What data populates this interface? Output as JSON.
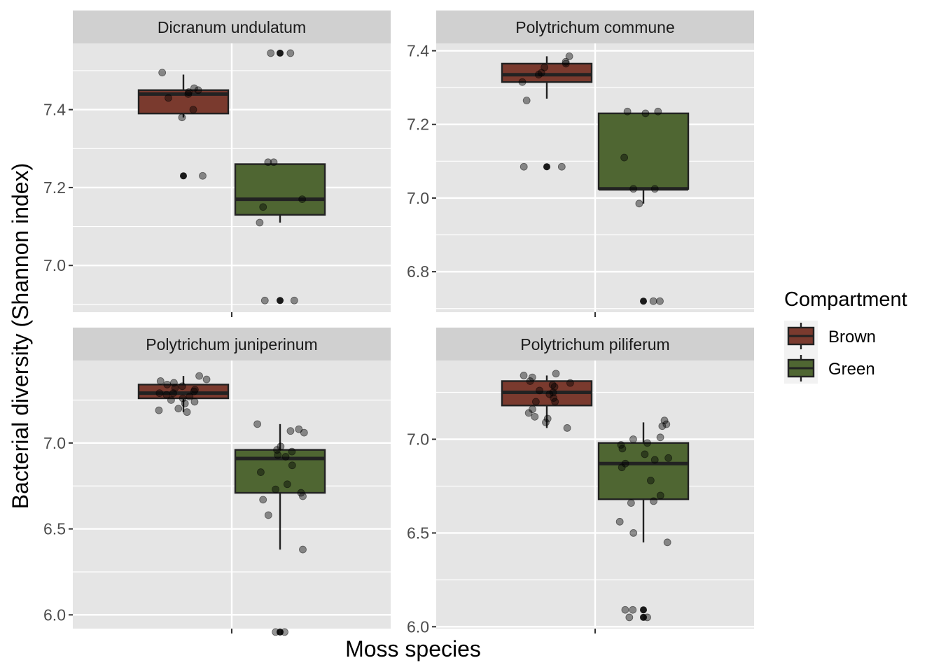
{
  "figure": {
    "x_title": "Moss species",
    "y_title": "Bacterial diversity (Shannon index)"
  },
  "legend": {
    "title": "Compartment",
    "items": [
      {
        "label": "Brown",
        "color": "#7a3a2e"
      },
      {
        "label": "Green",
        "color": "#4f6632"
      }
    ]
  },
  "colors": {
    "panel_bg": "#e5e5e5",
    "strip_bg": "#d0d0d0",
    "grid": "#ffffff",
    "brown_fill": "#7a3a2e",
    "green_fill": "#4f6632",
    "box_line": "#222222"
  },
  "chart_data": [
    {
      "type": "boxplot",
      "title": "Dicranum undulatum",
      "ylim": [
        6.88,
        7.57
      ],
      "yticks": [
        7.0,
        7.2,
        7.4
      ],
      "ytick_labels": [
        "7.0",
        "7.2",
        "7.4"
      ],
      "groups": [
        {
          "name": "Brown",
          "stats": {
            "min": 7.38,
            "q1": 7.39,
            "median": 7.44,
            "q3": 7.45,
            "max": 7.49
          },
          "outliers": [
            7.23
          ],
          "points": [
            7.495,
            7.45,
            7.455,
            7.44,
            7.445,
            7.43,
            7.4,
            7.38,
            7.23
          ]
        },
        {
          "name": "Green",
          "stats": {
            "min": 7.11,
            "q1": 7.13,
            "median": 7.17,
            "q3": 7.26,
            "max": 7.26
          },
          "outliers": [
            7.545,
            6.91
          ],
          "points": [
            7.545,
            7.545,
            7.265,
            7.265,
            7.17,
            7.15,
            7.11,
            6.91,
            6.91
          ]
        }
      ]
    },
    {
      "type": "boxplot",
      "title": "Polytrichum commune",
      "ylim": [
        6.69,
        7.42
      ],
      "yticks": [
        6.8,
        7.0,
        7.2,
        7.4
      ],
      "ytick_labels": [
        "6.8",
        "7.0",
        "7.2",
        "7.4"
      ],
      "groups": [
        {
          "name": "Brown",
          "stats": {
            "min": 7.27,
            "q1": 7.315,
            "median": 7.335,
            "q3": 7.365,
            "max": 7.385
          },
          "outliers": [
            7.085
          ],
          "points": [
            7.385,
            7.37,
            7.365,
            7.355,
            7.34,
            7.335,
            7.315,
            7.265,
            7.085,
            7.085
          ]
        },
        {
          "name": "Green",
          "stats": {
            "min": 6.985,
            "q1": 7.025,
            "median": 7.025,
            "q3": 7.23,
            "max": 7.23
          },
          "outliers": [
            6.72
          ],
          "points": [
            7.235,
            7.235,
            7.23,
            7.11,
            7.025,
            7.025,
            6.985,
            6.72,
            6.72
          ]
        }
      ]
    },
    {
      "type": "boxplot",
      "title": "Polytrichum juniperinum",
      "ylim": [
        5.92,
        7.48
      ],
      "yticks": [
        6.0,
        6.5,
        7.0
      ],
      "ytick_labels": [
        "6.0",
        "6.5",
        "7.0"
      ],
      "groups": [
        {
          "name": "Brown",
          "stats": {
            "min": 7.18,
            "q1": 7.26,
            "median": 7.29,
            "q3": 7.34,
            "max": 7.39
          },
          "outliers": [],
          "points": [
            7.39,
            7.37,
            7.36,
            7.35,
            7.34,
            7.33,
            7.32,
            7.31,
            7.3,
            7.29,
            7.29,
            7.28,
            7.27,
            7.26,
            7.25,
            7.24,
            7.23,
            7.2,
            7.19,
            7.18
          ]
        },
        {
          "name": "Green",
          "stats": {
            "min": 6.38,
            "q1": 6.71,
            "median": 6.91,
            "q3": 6.96,
            "max": 7.11
          },
          "outliers": [
            5.9
          ],
          "points": [
            7.11,
            7.08,
            7.07,
            7.06,
            6.98,
            6.96,
            6.95,
            6.93,
            6.92,
            6.87,
            6.83,
            6.76,
            6.73,
            6.71,
            6.69,
            6.67,
            6.58,
            6.38,
            5.9,
            5.9
          ]
        }
      ]
    },
    {
      "type": "boxplot",
      "title": "Polytrichum piliferum",
      "ylim": [
        5.99,
        7.42
      ],
      "yticks": [
        6.0,
        6.5,
        7.0
      ],
      "ytick_labels": [
        "6.0",
        "6.5",
        "7.0"
      ],
      "groups": [
        {
          "name": "Brown",
          "stats": {
            "min": 7.06,
            "q1": 7.18,
            "median": 7.25,
            "q3": 7.31,
            "max": 7.34
          },
          "outliers": [],
          "points": [
            7.35,
            7.34,
            7.33,
            7.31,
            7.3,
            7.29,
            7.28,
            7.26,
            7.25,
            7.24,
            7.22,
            7.2,
            7.2,
            7.16,
            7.14,
            7.12,
            7.11,
            7.09,
            7.06
          ]
        },
        {
          "name": "Green",
          "stats": {
            "min": 6.45,
            "q1": 6.68,
            "median": 6.87,
            "q3": 6.98,
            "max": 7.09
          },
          "outliers": [
            6.09,
            6.05
          ],
          "points": [
            7.1,
            7.08,
            7.07,
            7.01,
            7.0,
            6.98,
            6.97,
            6.95,
            6.92,
            6.9,
            6.89,
            6.87,
            6.85,
            6.78,
            6.7,
            6.67,
            6.66,
            6.56,
            6.5,
            6.45,
            6.09,
            6.09,
            6.05,
            6.05
          ]
        }
      ]
    }
  ]
}
